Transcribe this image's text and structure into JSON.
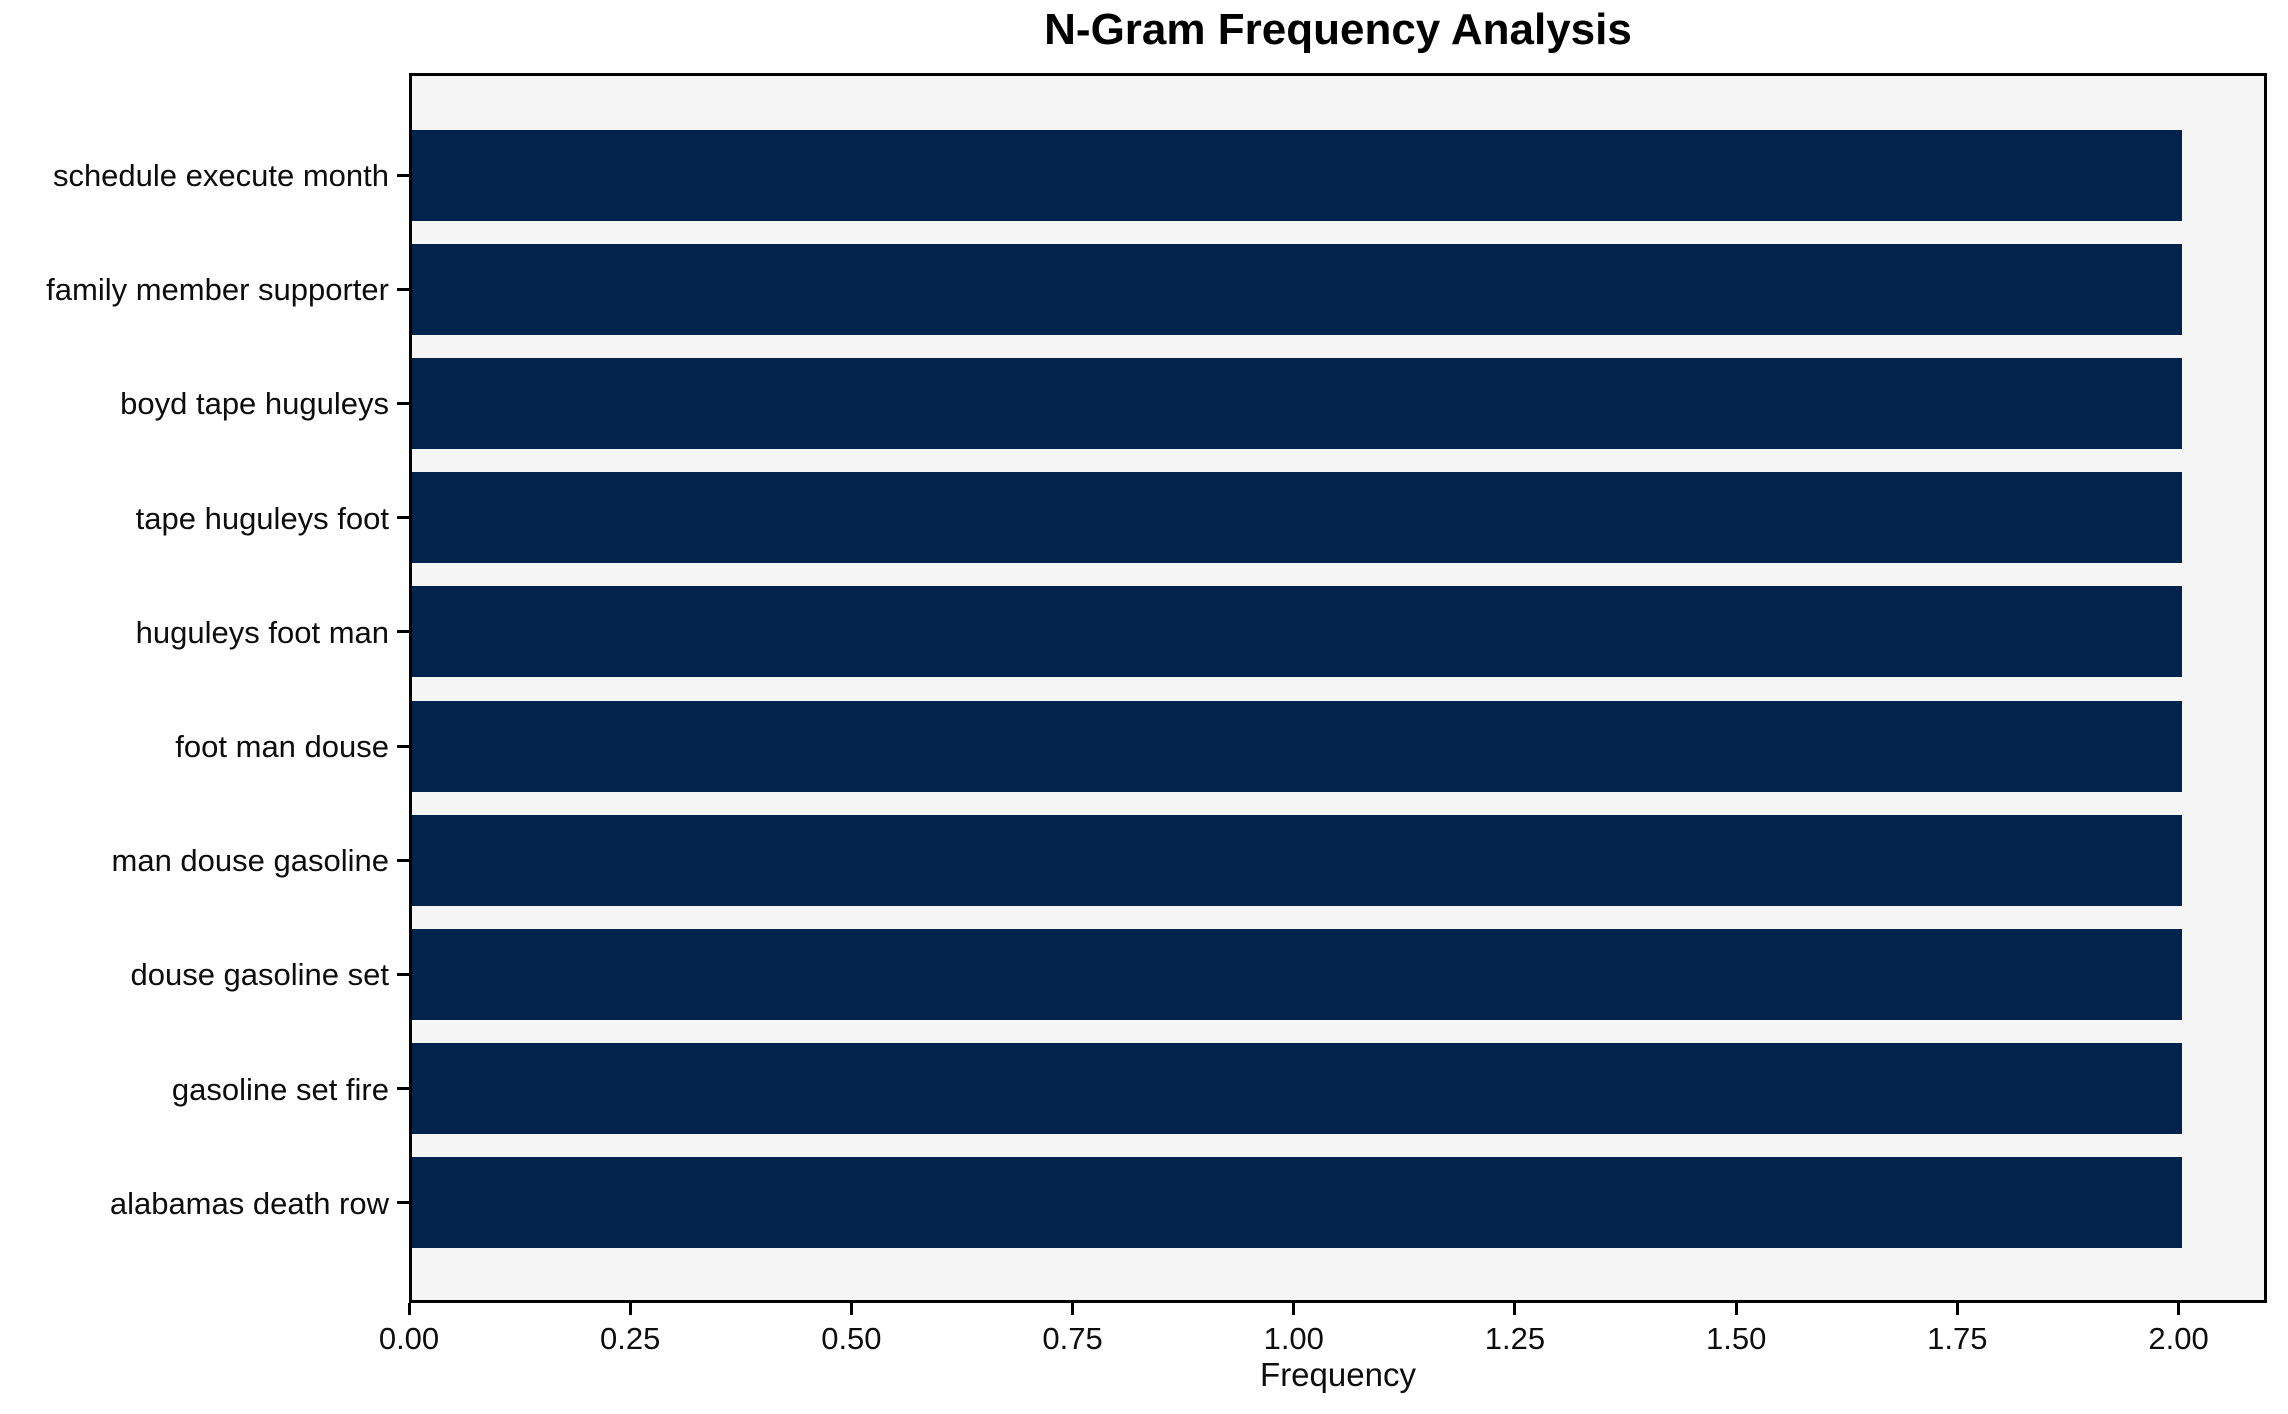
{
  "chart_data": {
    "type": "bar",
    "orientation": "horizontal",
    "title": "N-Gram Frequency Analysis",
    "xlabel": "Frequency",
    "ylabel": "",
    "categories": [
      "schedule execute month",
      "family member supporter",
      "boyd tape huguleys",
      "tape huguleys foot",
      "huguleys foot man",
      "foot man douse",
      "man douse gasoline",
      "douse gasoline set",
      "gasoline set fire",
      "alabamas death row"
    ],
    "values": [
      2.0,
      2.0,
      2.0,
      2.0,
      2.0,
      2.0,
      2.0,
      2.0,
      2.0,
      2.0
    ],
    "xlim": [
      0,
      2.1
    ],
    "xticks": [
      0.0,
      0.25,
      0.5,
      0.75,
      1.0,
      1.25,
      1.5,
      1.75,
      2.0
    ],
    "xtick_labels": [
      "0.00",
      "0.25",
      "0.50",
      "0.75",
      "1.00",
      "1.25",
      "1.50",
      "1.75",
      "2.00"
    ],
    "grid": false,
    "legend_position": "none",
    "colors": {
      "bar": "#02234C",
      "plot_background": "#f5f5f5",
      "figure_background": "#ffffff",
      "spine": "#000000",
      "text": "#0d0d0d"
    }
  }
}
